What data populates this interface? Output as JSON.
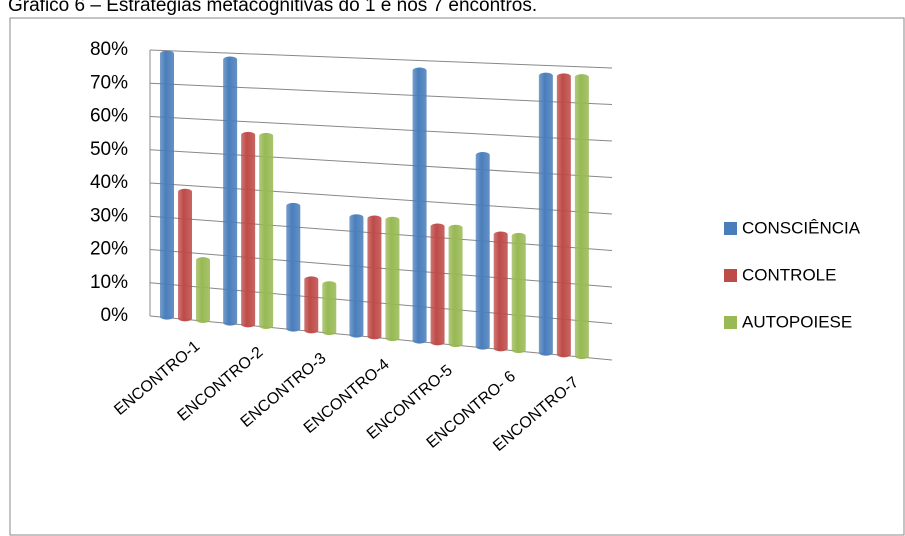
{
  "chart_data": {
    "type": "bar3d",
    "title": "Gráfico 6 – Estratégias metacognitivas do 1 e nos 7 encontros.",
    "categories": [
      "ENCONTRO-1",
      "ENCONTRO-2",
      "ENCONTRO-3",
      "ENCONTRO-4",
      "ENCONTRO-5",
      "ENCONTRO- 6",
      "ENCONTRO-7"
    ],
    "series": [
      {
        "name": "CONSCIÊNCIA",
        "color": "#4a7ebb",
        "values": [
          80,
          79,
          37,
          35,
          78,
          55,
          78
        ]
      },
      {
        "name": "CONTROLE",
        "color": "#be4b48",
        "values": [
          39,
          57,
          16,
          35,
          34,
          33,
          78
        ]
      },
      {
        "name": "AUTOPOIESE",
        "color": "#98b954",
        "values": [
          19,
          57,
          15,
          35,
          34,
          33,
          78
        ]
      }
    ],
    "ylim": [
      0,
      80
    ],
    "yticks": [
      {
        "value": 0,
        "label": "0%"
      },
      {
        "value": 10,
        "label": "10%"
      },
      {
        "value": 20,
        "label": "20%"
      },
      {
        "value": 30,
        "label": "30%"
      },
      {
        "value": 40,
        "label": "40%"
      },
      {
        "value": 50,
        "label": "50%"
      },
      {
        "value": 60,
        "label": "60%"
      },
      {
        "value": 70,
        "label": "70%"
      },
      {
        "value": 80,
        "label": "80%"
      }
    ],
    "grid": true,
    "legend": "right"
  }
}
